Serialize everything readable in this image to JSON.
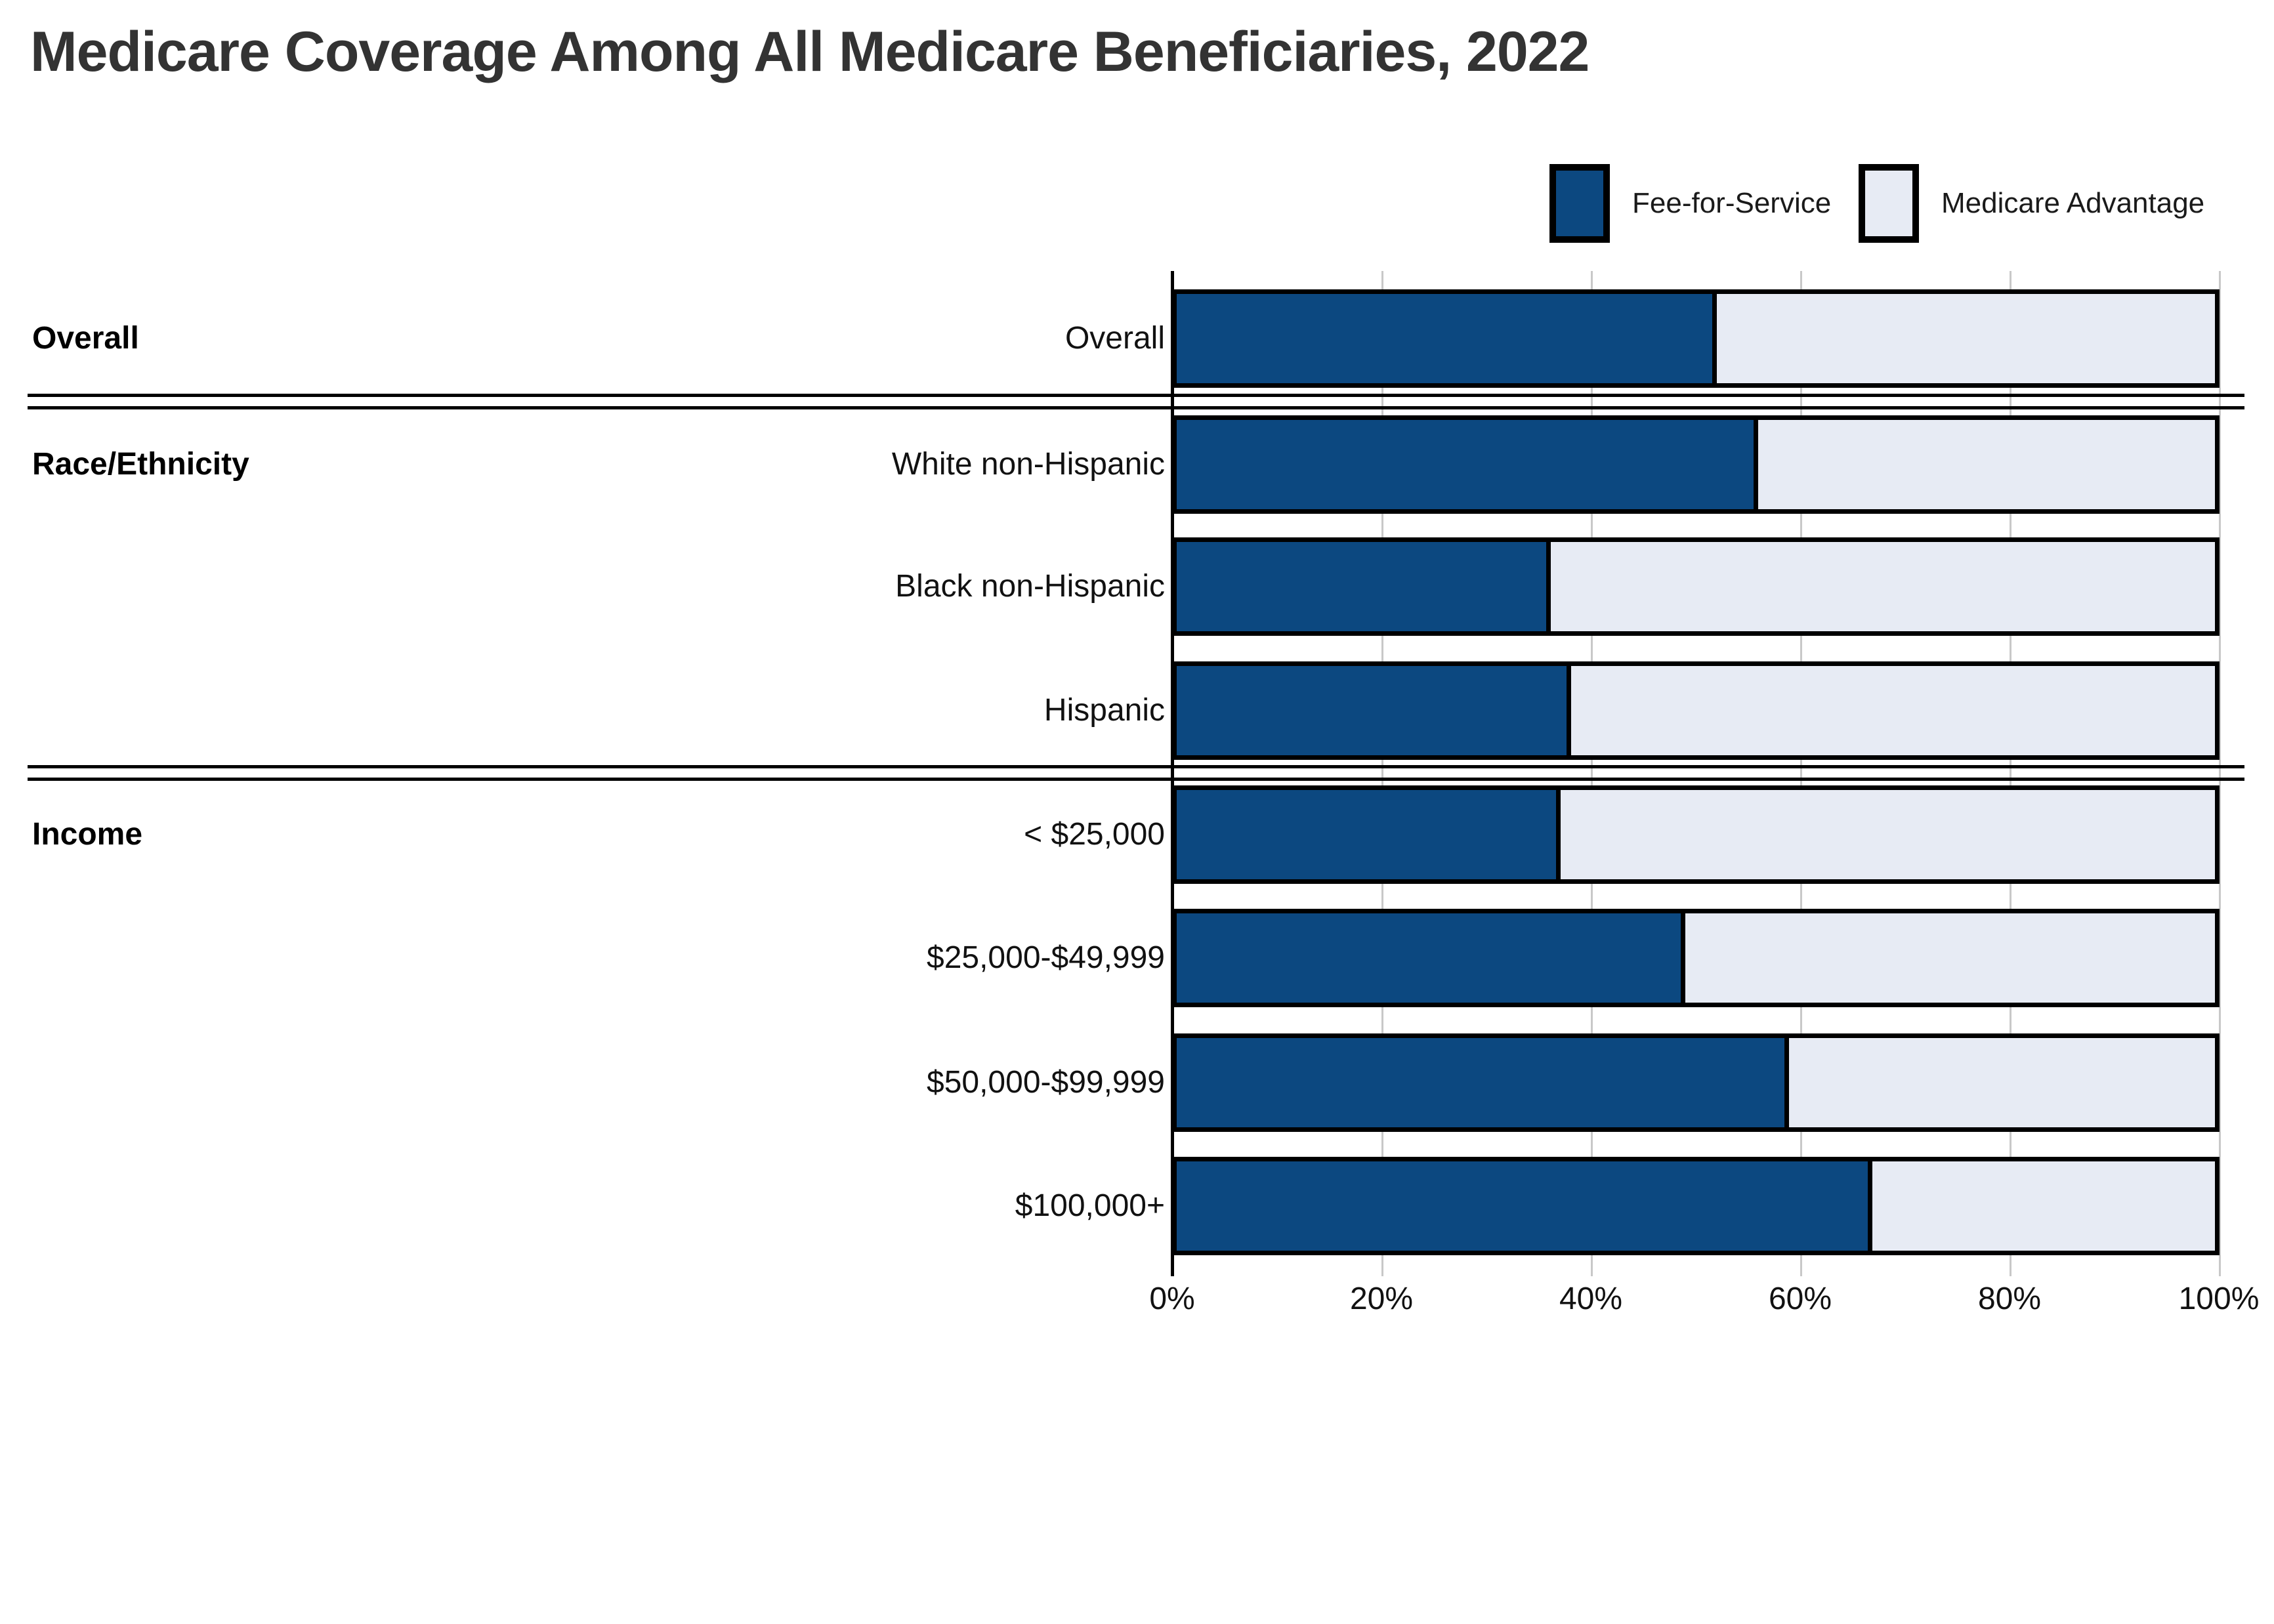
{
  "title": "Medicare Coverage Among All Medicare Beneficiaries, 2022",
  "chart_data": {
    "type": "bar",
    "stacked": true,
    "orientation": "horizontal",
    "unit": "percent",
    "title": "Medicare Coverage Among All Medicare Beneficiaries, 2022",
    "categories": [
      "Overall",
      "White non-Hispanic",
      "Black non-Hispanic",
      "Hispanic",
      "< $25,000",
      "$25,000-$49,999",
      "$50,000-$99,999",
      "$100,000+"
    ],
    "groups": [
      {
        "label": "Overall",
        "rows": [
          "Overall"
        ]
      },
      {
        "label": "Race/Ethnicity",
        "rows": [
          "White non-Hispanic",
          "Black non-Hispanic",
          "Hispanic"
        ]
      },
      {
        "label": "Income",
        "rows": [
          "< $25,000",
          "$25,000-$49,999",
          "$50,000-$99,999",
          "$100,000+"
        ]
      }
    ],
    "series": [
      {
        "name": "Fee-for-Service",
        "color": "#0c4880",
        "values": [
          52,
          56,
          36,
          38,
          37,
          49,
          59,
          67
        ]
      },
      {
        "name": "Medicare Advantage",
        "color": "#e7ebf4",
        "values": [
          48,
          44,
          64,
          62,
          63,
          51,
          41,
          33
        ]
      }
    ],
    "x_axis": {
      "range": [
        0,
        100
      ],
      "tick_labels": [
        "0%",
        "20%",
        "40%",
        "60%",
        "80%",
        "100%"
      ],
      "gridlines": true
    },
    "legend_position": "top-right",
    "bar_border_color": "#000000",
    "gridline_color": "#c8c8c8"
  }
}
